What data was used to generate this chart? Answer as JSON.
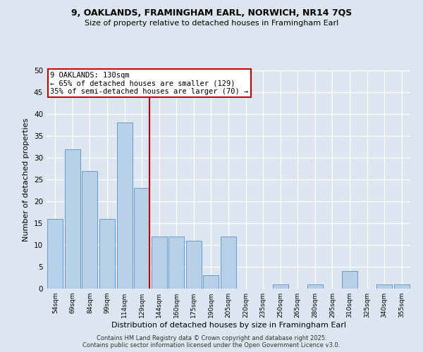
{
  "title1": "9, OAKLANDS, FRAMINGHAM EARL, NORWICH, NR14 7QS",
  "title2": "Size of property relative to detached houses in Framingham Earl",
  "xlabel": "Distribution of detached houses by size in Framingham Earl",
  "ylabel": "Number of detached properties",
  "footer1": "Contains HM Land Registry data © Crown copyright and database right 2025.",
  "footer2": "Contains public sector information licensed under the Open Government Licence v3.0.",
  "annotation_line1": "9 OAKLANDS: 130sqm",
  "annotation_line2": "← 65% of detached houses are smaller (129)",
  "annotation_line3": "35% of semi-detached houses are larger (70) →",
  "bar_color": "#b8cfe8",
  "bar_edge_color": "#6699cc",
  "highlight_color": "#cc0000",
  "bg_color": "#dde6f0",
  "categories": [
    "54sqm",
    "69sqm",
    "84sqm",
    "99sqm",
    "114sqm",
    "129sqm",
    "144sqm",
    "160sqm",
    "175sqm",
    "190sqm",
    "205sqm",
    "220sqm",
    "235sqm",
    "250sqm",
    "265sqm",
    "280sqm",
    "295sqm",
    "310sqm",
    "325sqm",
    "340sqm",
    "355sqm"
  ],
  "values": [
    16,
    32,
    27,
    16,
    38,
    23,
    12,
    12,
    11,
    3,
    12,
    0,
    0,
    1,
    0,
    1,
    0,
    4,
    0,
    1,
    1
  ],
  "highlight_index": 5,
  "ylim": [
    0,
    50
  ],
  "yticks": [
    0,
    5,
    10,
    15,
    20,
    25,
    30,
    35,
    40,
    45,
    50
  ]
}
